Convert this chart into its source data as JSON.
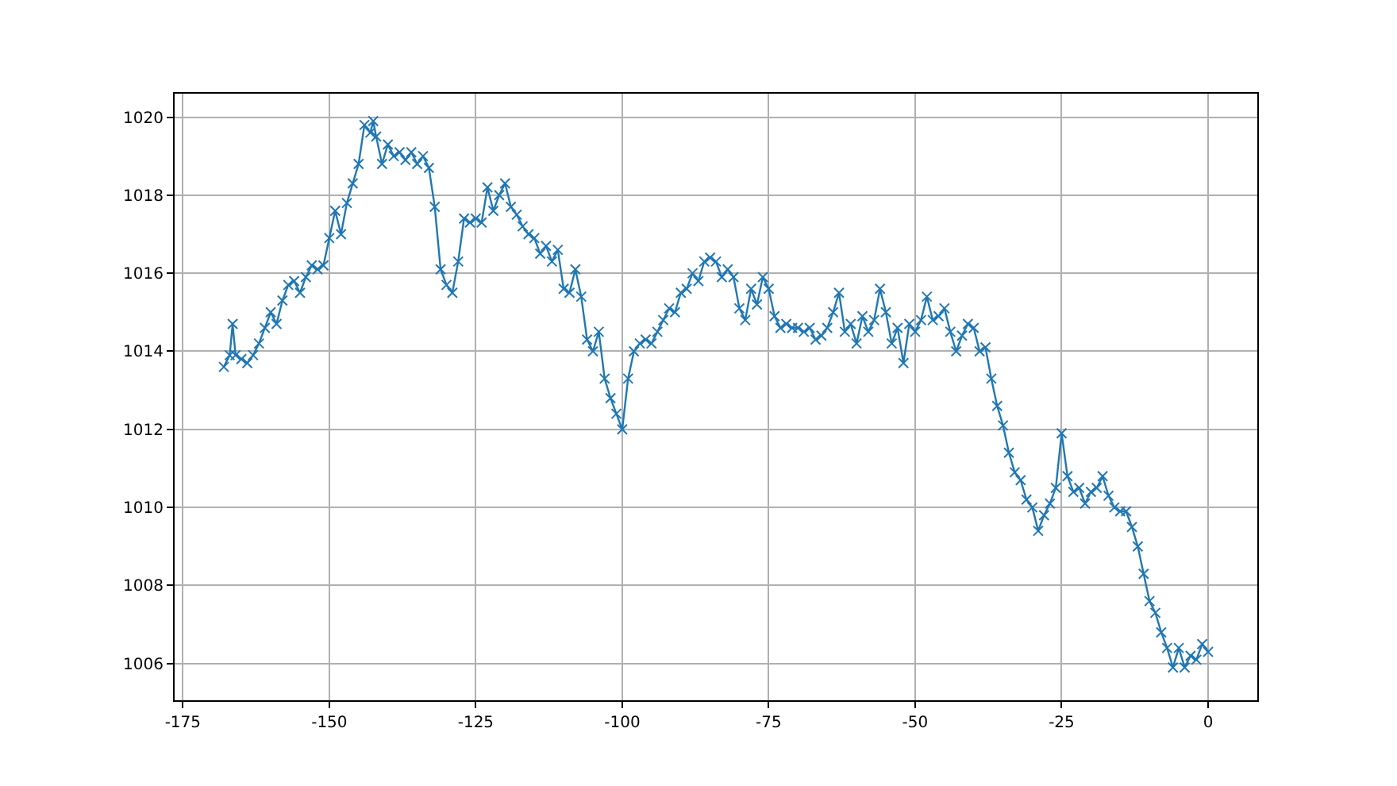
{
  "chart_data": {
    "type": "line",
    "marker": "cross",
    "grid": true,
    "legend": false,
    "xlim": [
      -176.4,
      8.4
    ],
    "ylim": [
      1005.06,
      1020.6
    ],
    "xticks": [
      -175,
      -150,
      -125,
      -100,
      -75,
      -50,
      -25,
      0
    ],
    "yticks": [
      1006,
      1008,
      1010,
      1012,
      1014,
      1016,
      1018,
      1020
    ],
    "series": [
      {
        "color": "#1f77b4",
        "x": [
          -168,
          -167,
          -166.5,
          -166,
          -165,
          -164,
          -163,
          -162,
          -161,
          -160,
          -159,
          -158,
          -157,
          -156,
          -155,
          -154,
          -153,
          -152,
          -151,
          -150,
          -149,
          -148,
          -147,
          -146,
          -145,
          -144,
          -143,
          -142.5,
          -142,
          -141,
          -140,
          -139,
          -138,
          -137,
          -136,
          -135,
          -134,
          -133,
          -132,
          -131,
          -130,
          -129,
          -128,
          -127,
          -126,
          -125,
          -124,
          -123,
          -122,
          -121,
          -120,
          -119,
          -118,
          -117,
          -116,
          -115,
          -114,
          -113,
          -112,
          -111,
          -110,
          -109,
          -108,
          -107,
          -106,
          -105,
          -104,
          -103,
          -102,
          -101,
          -100,
          -99,
          -98,
          -97,
          -96,
          -95,
          -94,
          -93,
          -92,
          -91,
          -90,
          -89,
          -88,
          -87,
          -86,
          -85,
          -84,
          -83,
          -82,
          -81,
          -80,
          -79,
          -78,
          -77,
          -76,
          -75,
          -74,
          -73,
          -72,
          -71,
          -70,
          -69,
          -68,
          -67,
          -66,
          -65,
          -64,
          -63,
          -62,
          -61,
          -60,
          -59,
          -58,
          -57,
          -56,
          -55,
          -54,
          -53,
          -52,
          -51,
          -50,
          -49,
          -48,
          -47,
          -46,
          -45,
          -44,
          -43,
          -42,
          -41,
          -40,
          -39,
          -38,
          -37,
          -36,
          -35,
          -34,
          -33,
          -32,
          -31,
          -30,
          -29,
          -28,
          -27,
          -26,
          -25,
          -24,
          -23,
          -22,
          -21,
          -20,
          -19,
          -18,
          -17,
          -16,
          -15,
          -14,
          -13,
          -12,
          -11,
          -10,
          -9,
          -8,
          -7,
          -6,
          -5,
          -4,
          -3,
          -2,
          -1,
          0
        ],
        "values": [
          1013.6,
          1013.9,
          1014.7,
          1013.9,
          1013.8,
          1013.7,
          1013.9,
          1014.2,
          1014.6,
          1015.0,
          1014.7,
          1015.3,
          1015.7,
          1015.8,
          1015.5,
          1015.9,
          1016.2,
          1016.1,
          1016.2,
          1016.9,
          1017.6,
          1017.0,
          1017.8,
          1018.3,
          1018.8,
          1019.8,
          1019.6,
          1019.9,
          1019.5,
          1018.8,
          1019.3,
          1019.0,
          1019.1,
          1018.9,
          1019.1,
          1018.8,
          1019.0,
          1018.7,
          1017.7,
          1016.1,
          1015.7,
          1015.5,
          1016.3,
          1017.4,
          1017.3,
          1017.4,
          1017.3,
          1018.2,
          1017.6,
          1018.0,
          1018.3,
          1017.7,
          1017.5,
          1017.2,
          1017.0,
          1016.9,
          1016.5,
          1016.7,
          1016.3,
          1016.6,
          1015.6,
          1015.5,
          1016.1,
          1015.4,
          1014.3,
          1014.0,
          1014.5,
          1013.3,
          1012.8,
          1012.4,
          1012.0,
          1013.3,
          1014.0,
          1014.2,
          1014.3,
          1014.2,
          1014.5,
          1014.8,
          1015.1,
          1015.0,
          1015.5,
          1015.6,
          1016.0,
          1015.8,
          1016.3,
          1016.4,
          1016.3,
          1015.9,
          1016.1,
          1015.9,
          1015.1,
          1014.8,
          1015.6,
          1015.2,
          1015.9,
          1015.6,
          1014.9,
          1014.6,
          1014.7,
          1014.6,
          1014.6,
          1014.5,
          1014.6,
          1014.3,
          1014.4,
          1014.6,
          1015.0,
          1015.5,
          1014.5,
          1014.7,
          1014.2,
          1014.9,
          1014.5,
          1014.8,
          1015.6,
          1015.0,
          1014.2,
          1014.6,
          1013.7,
          1014.7,
          1014.5,
          1014.8,
          1015.4,
          1014.8,
          1014.9,
          1015.1,
          1014.5,
          1014.0,
          1014.4,
          1014.7,
          1014.6,
          1014.0,
          1014.1,
          1013.3,
          1012.6,
          1012.1,
          1011.4,
          1010.9,
          1010.7,
          1010.2,
          1010.0,
          1009.4,
          1009.8,
          1010.1,
          1010.5,
          1011.9,
          1010.8,
          1010.4,
          1010.5,
          1010.1,
          1010.4,
          1010.5,
          1010.8,
          1010.3,
          1010.0,
          1009.9,
          1009.9,
          1009.5,
          1009.0,
          1008.3,
          1007.6,
          1007.3,
          1006.8,
          1006.4,
          1005.9,
          1006.4,
          1005.9,
          1006.2,
          1006.1,
          1006.5,
          1006.3
        ]
      }
    ]
  }
}
